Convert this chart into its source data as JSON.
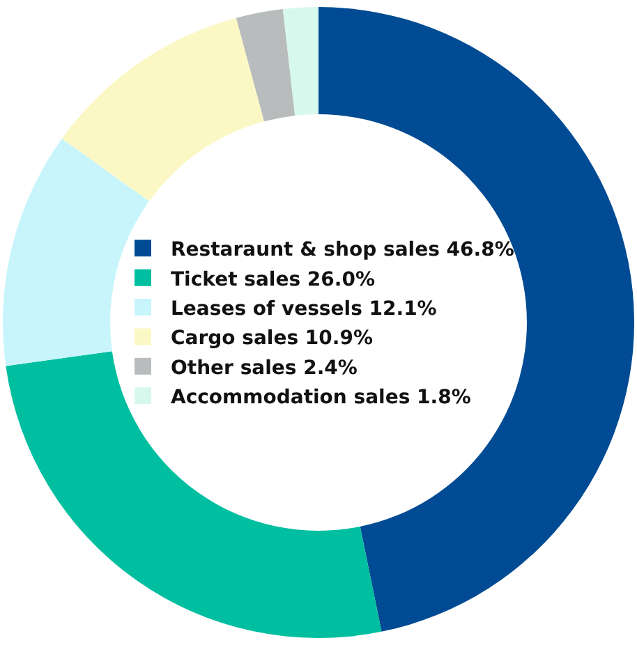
{
  "chart_data": {
    "type": "donut",
    "categories": [
      "Restaraunt & shop sales 46.8%",
      "Ticket sales 26.0%",
      "Leases of vessels 12.1%",
      "Cargo sales 10.9%",
      "Other sales 2.4%",
      "Accommodation sales 1.8%"
    ],
    "values": [
      46.8,
      26.0,
      12.1,
      10.9,
      2.4,
      1.8
    ],
    "colors": [
      "#004b93",
      "#00bfa0",
      "#c8f5fb",
      "#fbf8c5",
      "#b8bcbc",
      "#d7f8ec"
    ],
    "legend": "center"
  }
}
